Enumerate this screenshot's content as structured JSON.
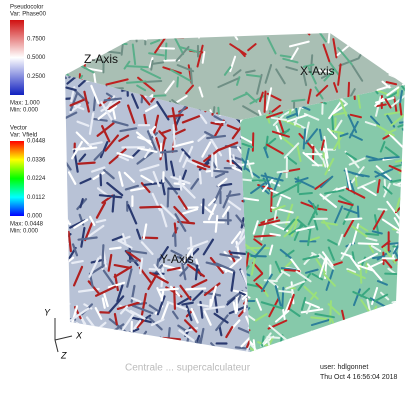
{
  "pseudocolor_legend": {
    "title": "Pseudocolor",
    "variable": "Var: Phase00",
    "ticks": [
      "0.7500",
      "0.5000",
      "0.2500"
    ],
    "max": "Max: 1.000",
    "min": "Min: 0.000"
  },
  "vector_legend": {
    "title": "Vector",
    "variable": "Var: Vfield",
    "ticks": [
      "0.0448",
      "0.0336",
      "0.0224",
      "0.0112",
      "0.000"
    ],
    "max": "Max: 0.0448",
    "min": "Min: 0.000"
  },
  "axis_labels": {
    "z_axis": "Z-Axis",
    "x_axis": "X-Axis",
    "y_axis": "Y-Axis"
  },
  "triad": {
    "y": "Y",
    "x": "X",
    "z": "Z"
  },
  "watermark": "Centrale ... supercalculateur",
  "footer": {
    "user": "user: hdlgonnet",
    "date": "Thu Oct  4 16:56:04 2018"
  }
}
